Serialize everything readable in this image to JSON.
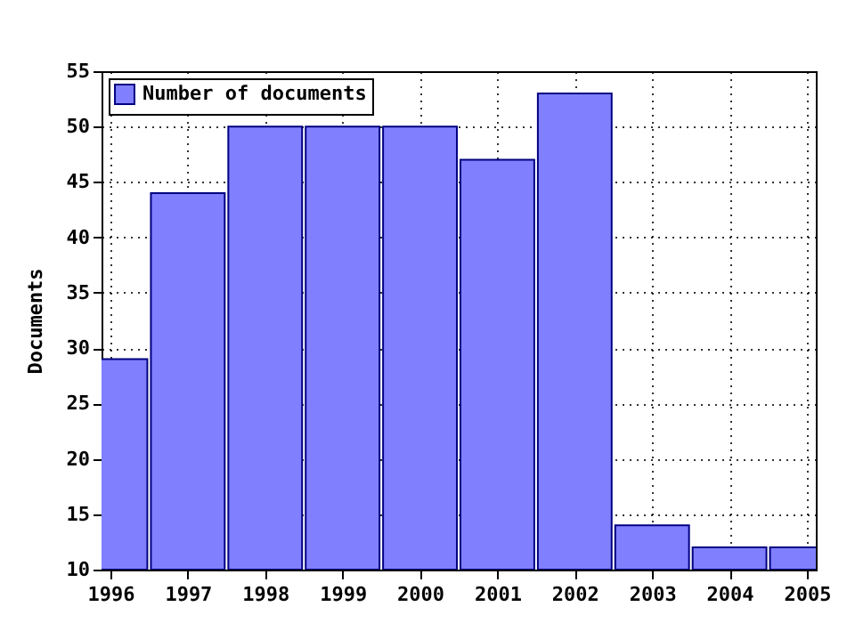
{
  "chart_data": {
    "type": "bar",
    "ylabel": "Documents",
    "x": [
      1996,
      1997,
      1998,
      1999,
      2000,
      2001,
      2002,
      2003,
      2004,
      2005
    ],
    "series": [
      {
        "name": "Number of documents",
        "color": "#8080ff",
        "values": [
          29,
          44,
          50,
          50,
          50,
          47,
          53,
          14,
          12,
          12
        ]
      }
    ],
    "xlim": [
      1996,
      2005
    ],
    "xticks": [
      1996,
      1997,
      1998,
      1999,
      2000,
      2001,
      2002,
      2003,
      2004,
      2005
    ],
    "ylim": [
      10,
      55
    ],
    "yticks": [
      10,
      15,
      20,
      25,
      30,
      35,
      40,
      45,
      50,
      55
    ],
    "grid": true,
    "legend": "top left"
  }
}
